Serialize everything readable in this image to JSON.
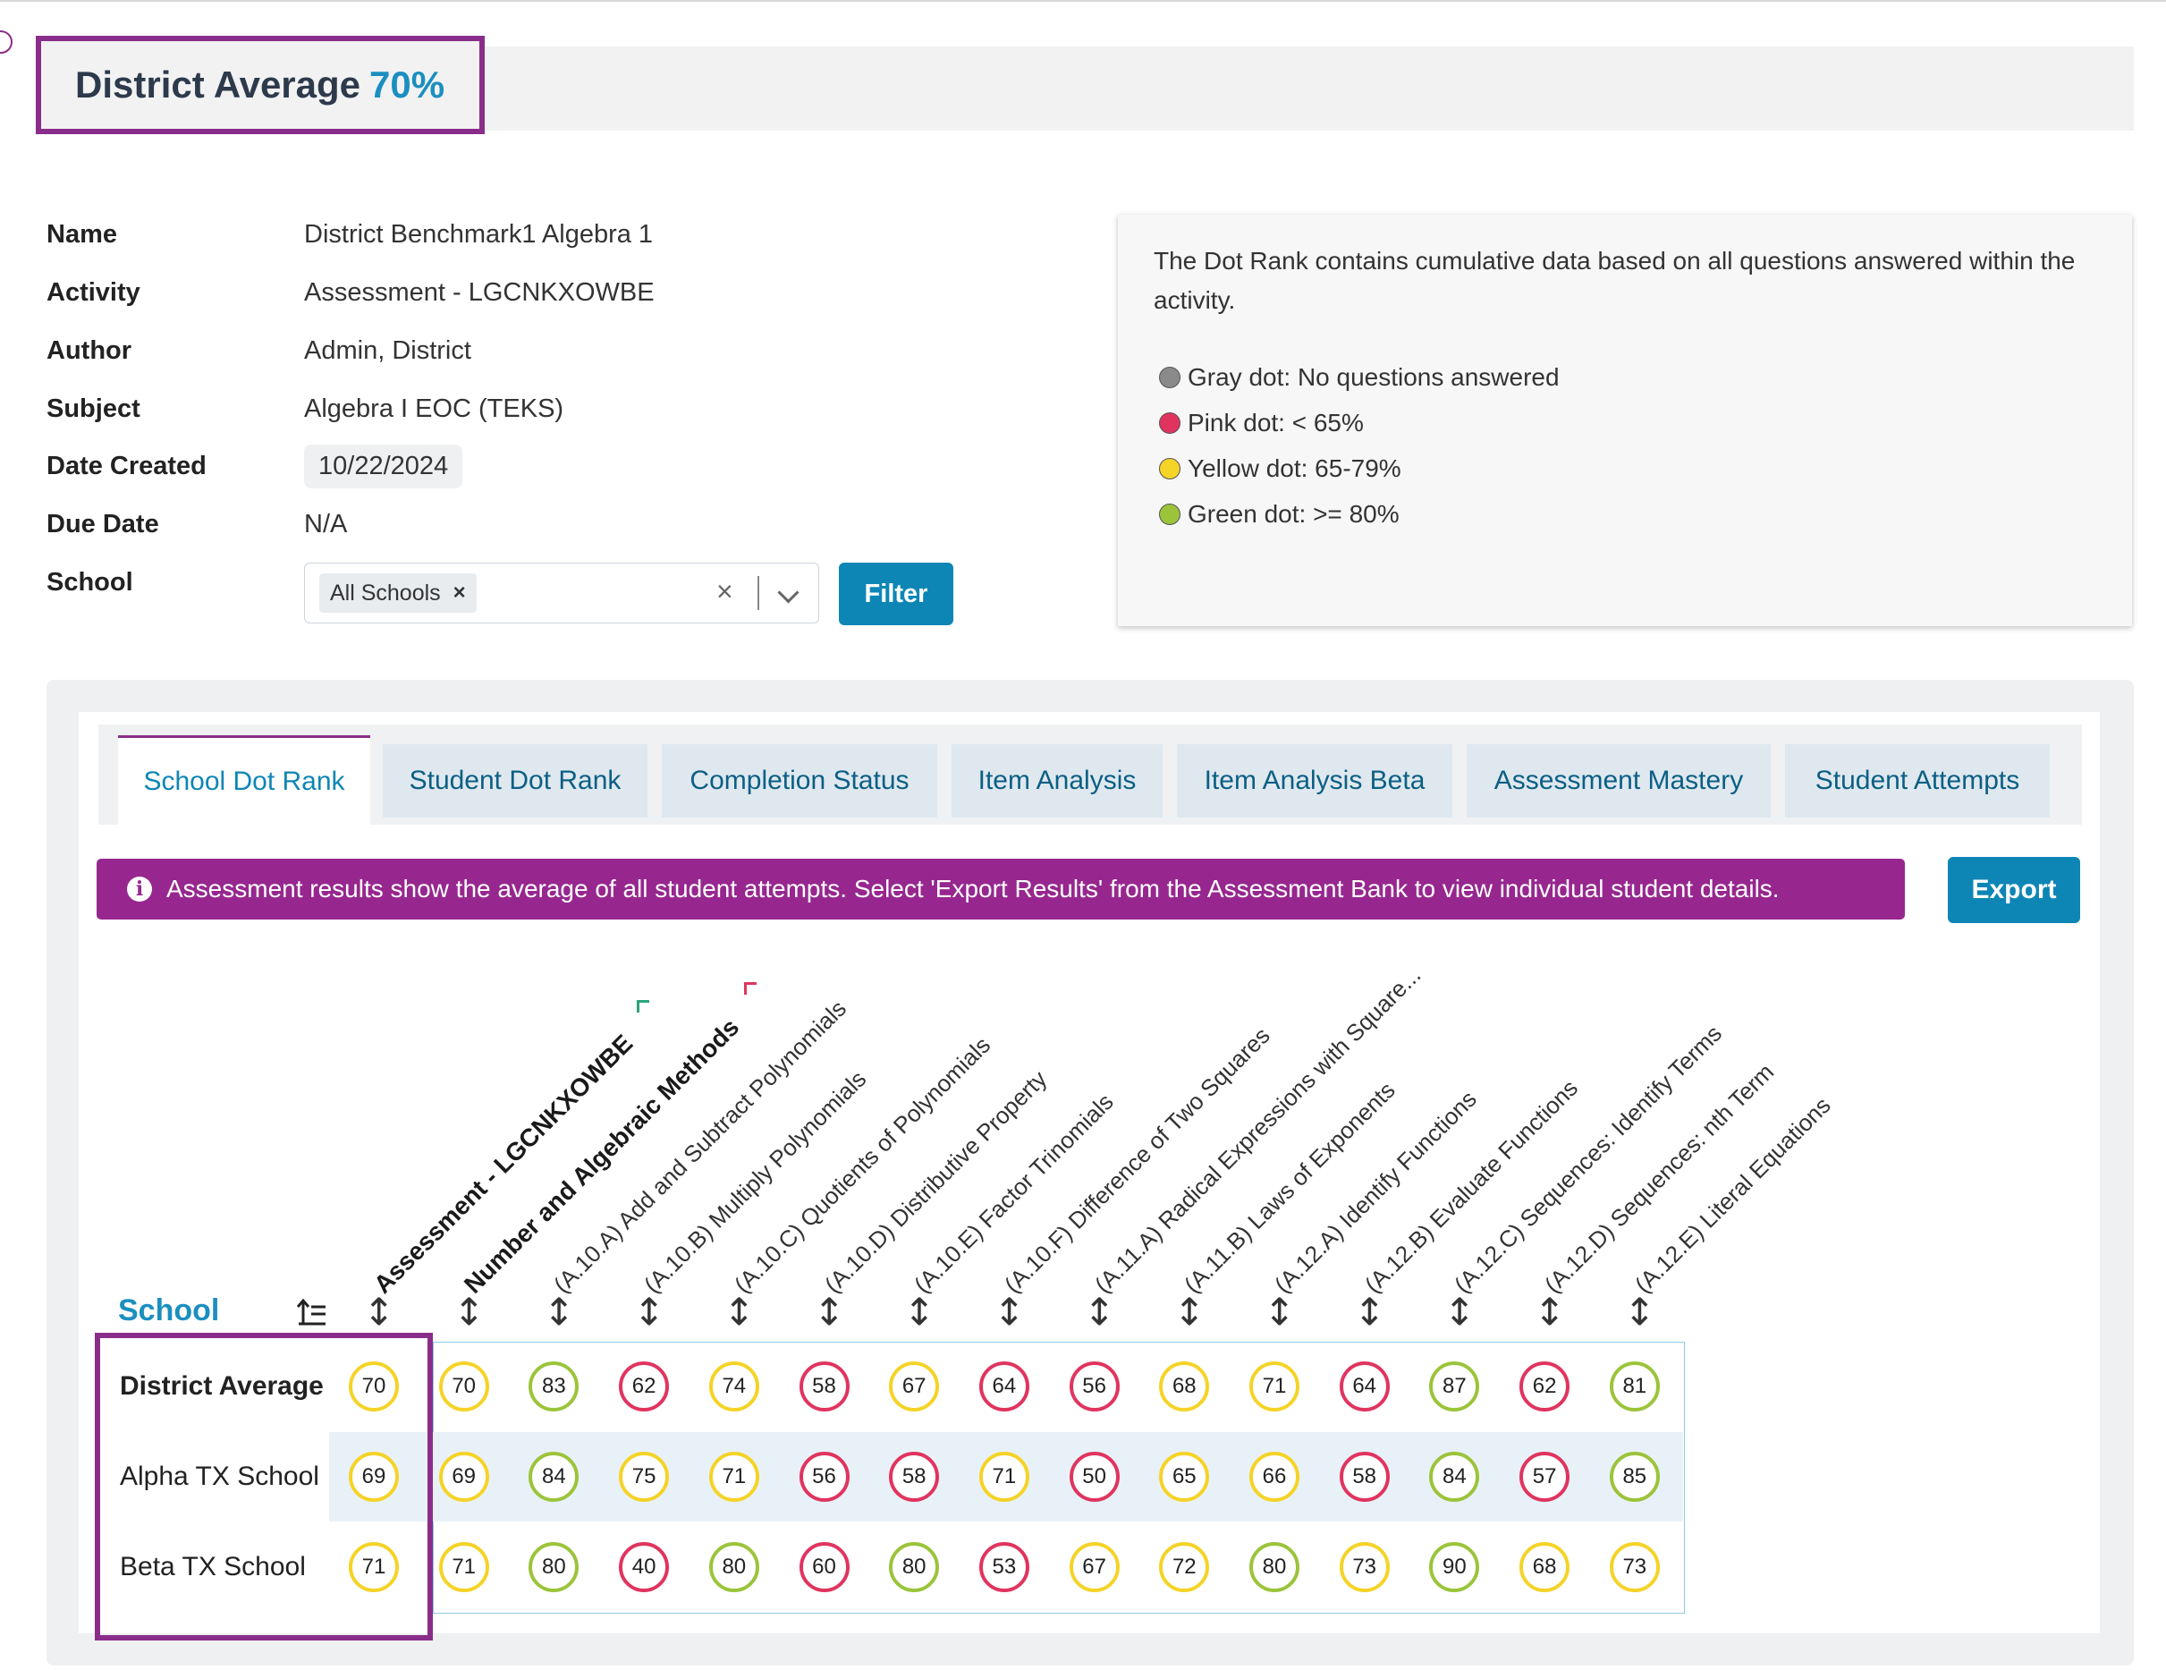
{
  "header": {
    "title": "District Average",
    "value": "70%"
  },
  "info": {
    "name_label": "Name",
    "name_value": "District Benchmark1 Algebra 1",
    "activity_label": "Activity",
    "activity_value": "Assessment - LGCNKXOWBE",
    "author_label": "Author",
    "author_value": "Admin, District",
    "subject_label": "Subject",
    "subject_value": "Algebra I EOC (TEKS)",
    "date_created_label": "Date Created",
    "date_created_value": "10/22/2024",
    "due_date_label": "Due Date",
    "due_date_value": "N/A",
    "school_label": "School",
    "school_chip": "All Schools",
    "filter_label": "Filter"
  },
  "legend": {
    "description": "The Dot Rank contains cumulative data based on all questions answered within the activity.",
    "items": [
      {
        "label": "Gray dot: No questions answered",
        "color": "#8a8a8a"
      },
      {
        "label": "Pink dot: < 65%",
        "color": "#e0345f"
      },
      {
        "label": "Yellow dot: 65-79%",
        "color": "#f5d327"
      },
      {
        "label": "Green dot: >= 80%",
        "color": "#9bc43a"
      }
    ]
  },
  "tabs": [
    {
      "label": "School Dot Rank",
      "active": true
    },
    {
      "label": "Student Dot Rank"
    },
    {
      "label": "Completion Status"
    },
    {
      "label": "Item Analysis"
    },
    {
      "label": "Item Analysis Beta"
    },
    {
      "label": "Assessment Mastery"
    },
    {
      "label": "Student Attempts"
    }
  ],
  "alert": {
    "icon": "info-icon",
    "text": "Assessment results show the average of all student attempts. Select 'Export Results' from the Assessment Bank to view individual student details."
  },
  "export_label": "Export",
  "grid": {
    "school_header": "School",
    "columns": [
      "Assessment - LGCNKXOWBE",
      "Number and Algebraic Methods",
      "(A.10.A) Add and Subtract Polynomials",
      "(A.10.B) Multiply Polynomials",
      "(A.10.C) Quotients of Polynomials",
      "(A.10.D) Distributive Property",
      "(A.10.E) Factor Trinomials",
      "(A.10.F) Difference of Two Squares",
      "(A.11.A) Radical Expressions with Square...",
      "(A.11.B) Laws of Exponents",
      "(A.12.A) Identify Functions",
      "(A.12.B) Evaluate Functions",
      "(A.12.C) Sequences: Identify Terms",
      "(A.12.D) Sequences: nth Term",
      "(A.12.E) Literal Equations"
    ],
    "rows": [
      {
        "label": "District Average",
        "bold": true,
        "values": [
          70,
          70,
          83,
          62,
          74,
          58,
          67,
          64,
          56,
          68,
          71,
          64,
          87,
          62,
          81
        ]
      },
      {
        "label": "Alpha TX School",
        "values": [
          69,
          69,
          84,
          75,
          71,
          56,
          58,
          71,
          50,
          65,
          66,
          58,
          84,
          57,
          85
        ]
      },
      {
        "label": "Beta TX School",
        "values": [
          71,
          71,
          80,
          40,
          80,
          60,
          80,
          53,
          67,
          72,
          80,
          73,
          90,
          68,
          73
        ]
      }
    ]
  }
}
